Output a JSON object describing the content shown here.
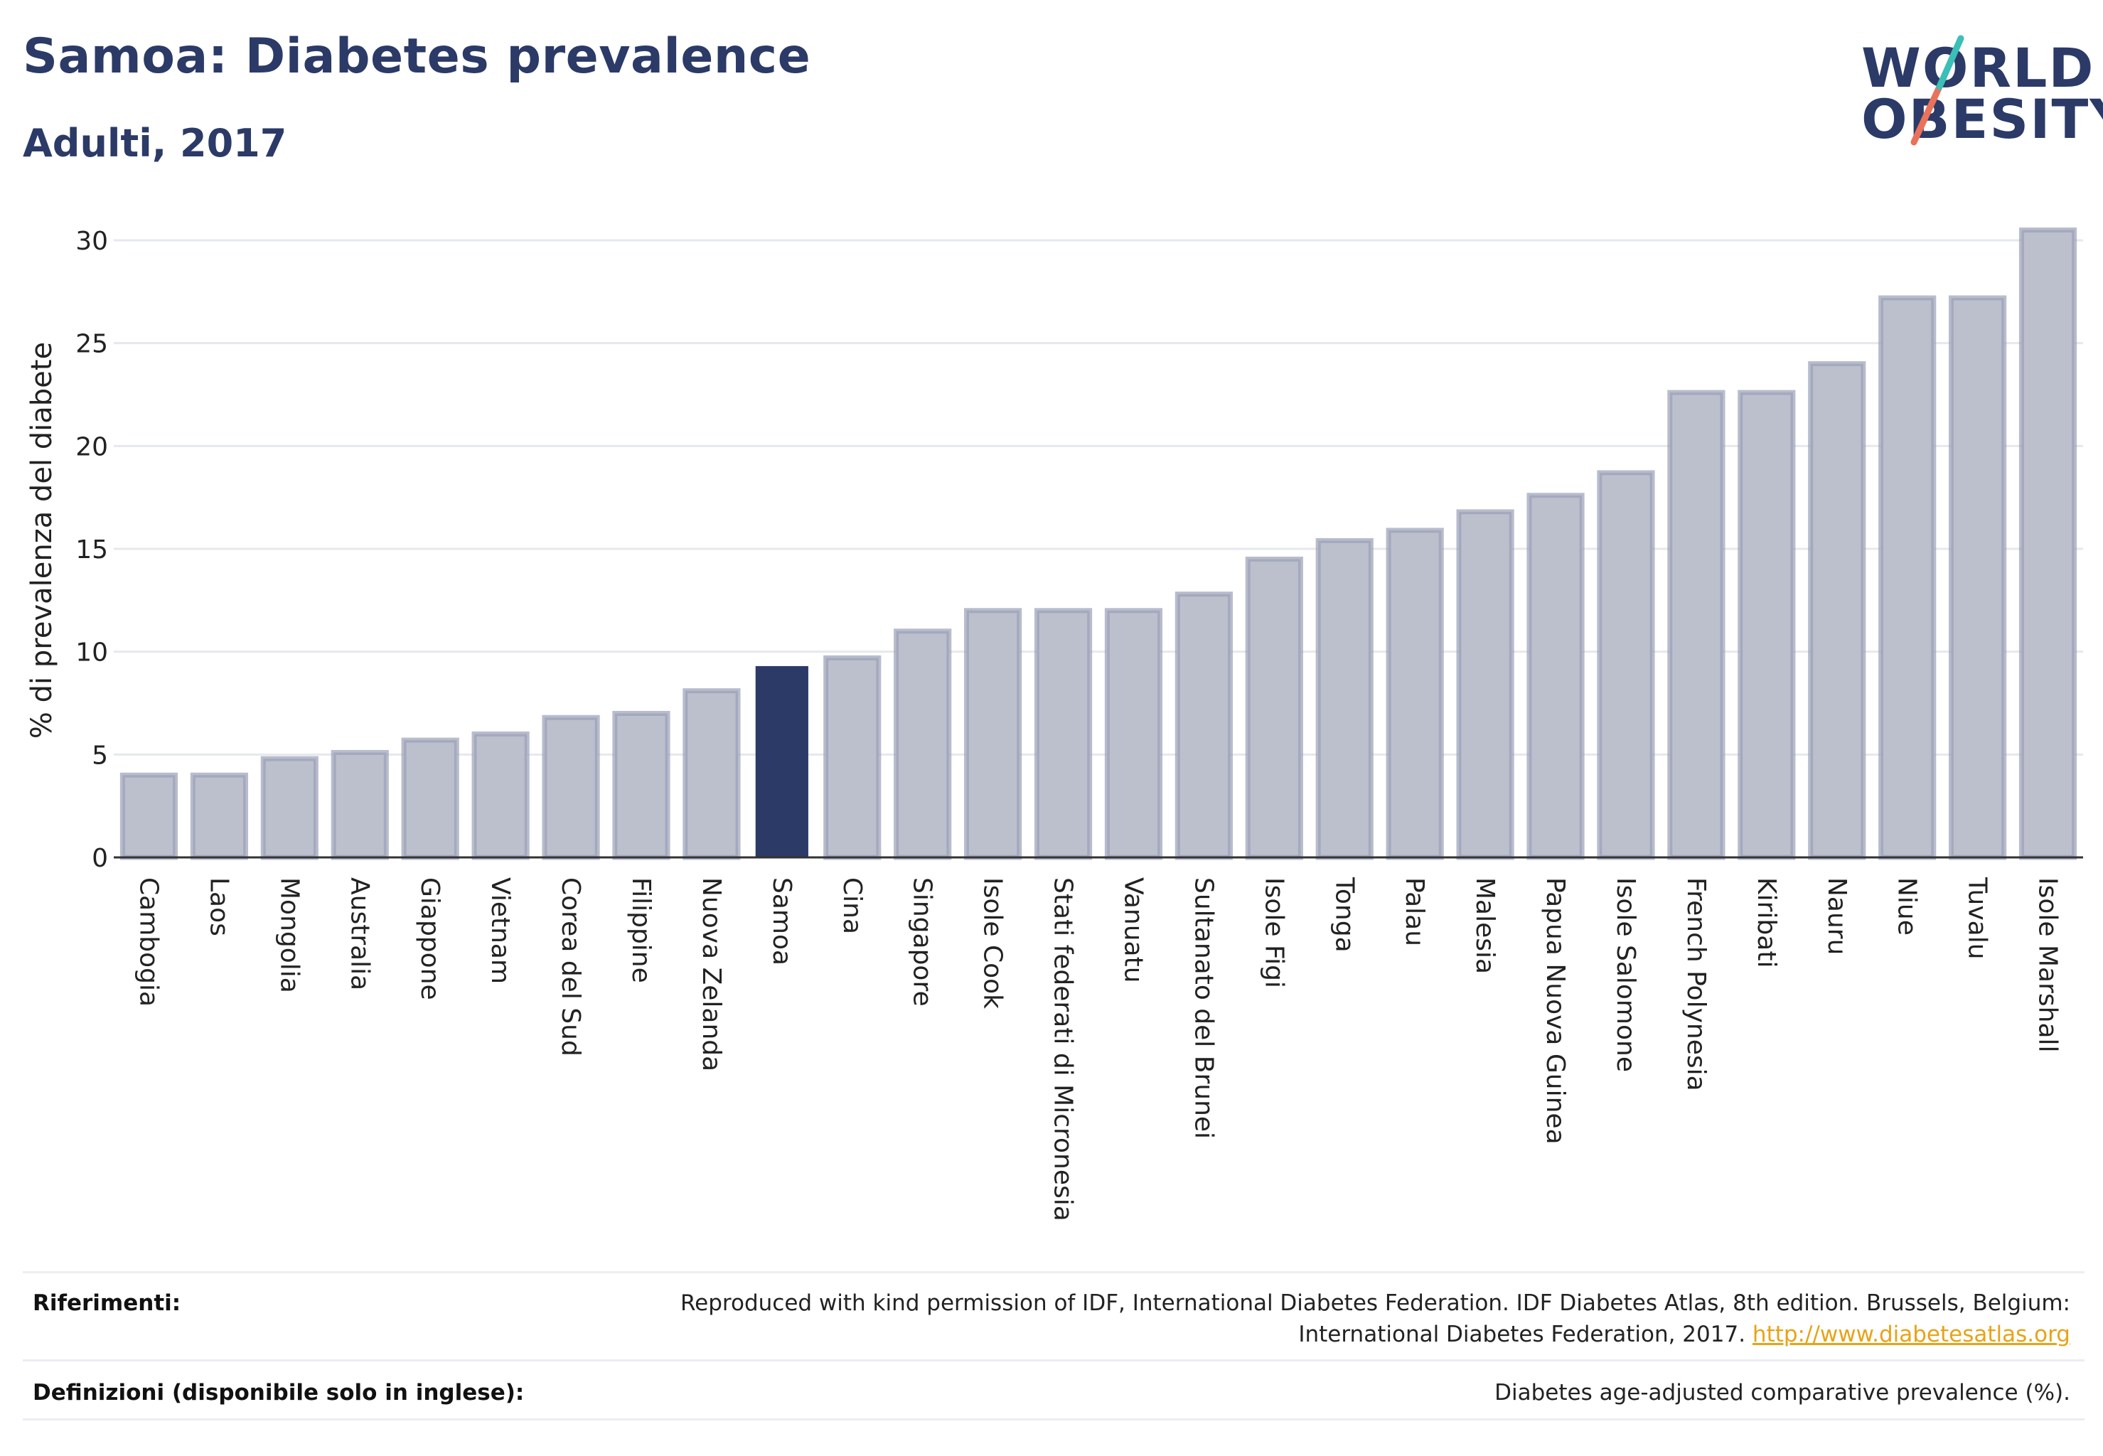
{
  "header": {
    "title": "Samoa: Diabetes prevalence",
    "subtitle": "Adulti, 2017"
  },
  "logo": {
    "line1": "WORLD",
    "line2": "OBESITY"
  },
  "colors": {
    "highlight": "#2b3a67",
    "bar": "#bcc0cd",
    "bar_stroke": "#9aa0b8",
    "grid": "#e6e8ee",
    "accent_teal": "#3bbfb6",
    "accent_coral": "#e8735a"
  },
  "chart_data": {
    "type": "bar",
    "title": "Samoa: Diabetes prevalence",
    "subtitle": "Adulti, 2017",
    "ylabel": "% di prevalenza del diabete",
    "xlabel": "",
    "ylim": [
      0,
      32
    ],
    "yticks": [
      0,
      5,
      10,
      15,
      20,
      25,
      30
    ],
    "grid": true,
    "highlight": "Samoa",
    "categories": [
      "Cambogia",
      "Laos",
      "Mongolia",
      "Australia",
      "Giappone",
      "Vietnam",
      "Corea del Sud",
      "Filippine",
      "Nuova Zelanda",
      "Samoa",
      "Cina",
      "Singapore",
      "Isole Cook",
      "Stati federati di Micronesia",
      "Vanuatu",
      "Sultanato del Brunei",
      "Isole Figi",
      "Tonga",
      "Palau",
      "Malesia",
      "Papua Nuova Guinea",
      "Isole Salomone",
      "French Polynesia",
      "Kiribati",
      "Nauru",
      "Niue",
      "Tuvalu",
      "Isole Marshall"
    ],
    "values": [
      4.0,
      4.0,
      4.8,
      5.1,
      5.7,
      6.0,
      6.8,
      7.0,
      8.1,
      9.3,
      9.7,
      11.0,
      12.0,
      12.0,
      12.0,
      12.8,
      14.5,
      15.4,
      15.9,
      16.8,
      17.6,
      18.7,
      22.6,
      22.6,
      24.0,
      27.2,
      27.2,
      30.5
    ]
  },
  "footer": {
    "references_label": "Riferimenti:",
    "references_line1": "Reproduced with kind permission of IDF, International Diabetes Federation. IDF Diabetes Atlas, 8th edition. Brussels, Belgium:",
    "references_line2": "International Diabetes Federation, 2017.",
    "references_link": "http://www.diabetesatlas.org",
    "definitions_label": "Definizioni (disponibile solo in inglese):",
    "definitions_text": "Diabetes age-adjusted comparative prevalence (%)."
  }
}
